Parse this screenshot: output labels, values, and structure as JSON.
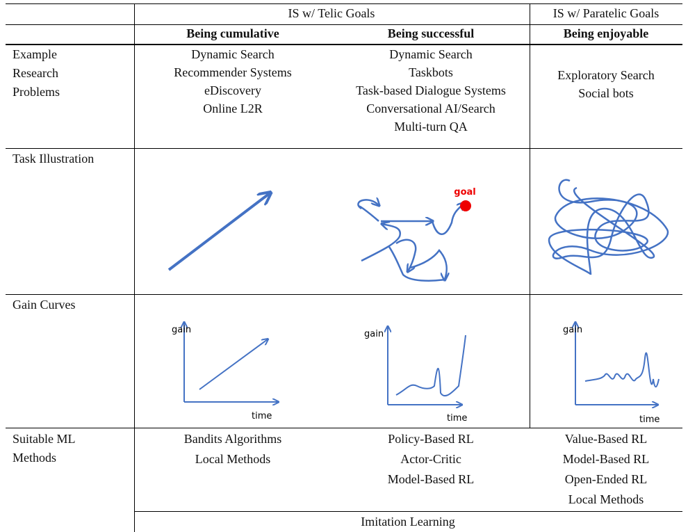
{
  "header": {
    "group_telic": "IS w/ Telic Goals",
    "group_paratelic": "IS w/ Paratelic Goals",
    "columns": [
      "Being cumulative",
      "Being successful",
      "Being enjoyable"
    ]
  },
  "rows": [
    {
      "label": [
        "Example",
        "Research",
        "Problems"
      ],
      "cells": [
        [
          "Dynamic Search",
          "Recommender Systems",
          "eDiscovery",
          "Online L2R"
        ],
        [
          "Dynamic Search",
          "Taskbots",
          "Task-based Dialogue Systems",
          "Conversational AI/Search",
          "Multi-turn QA"
        ],
        [
          "Exploratory Search",
          "Social bots"
        ]
      ]
    },
    {
      "label": [
        "Task Illustration"
      ],
      "goal_label": "goal"
    },
    {
      "label": [
        "Gain Curves"
      ],
      "curves": [
        {
          "y_label": "gain",
          "x_label": "time"
        },
        {
          "y_label": "gain",
          "x_label": "time"
        },
        {
          "y_label": "gain",
          "x_label": "time"
        }
      ]
    },
    {
      "label": [
        "Suitable ML",
        "Methods"
      ],
      "cells": [
        [
          "Bandits Algorithms",
          "Local Methods"
        ],
        [
          "Policy-Based RL",
          "Actor-Critic",
          "Model-Based RL"
        ],
        [
          "Value-Based RL",
          "Model-Based RL",
          "Open-Ended RL",
          "Local Methods"
        ]
      ]
    }
  ],
  "shared_row": "Imitation Learning"
}
